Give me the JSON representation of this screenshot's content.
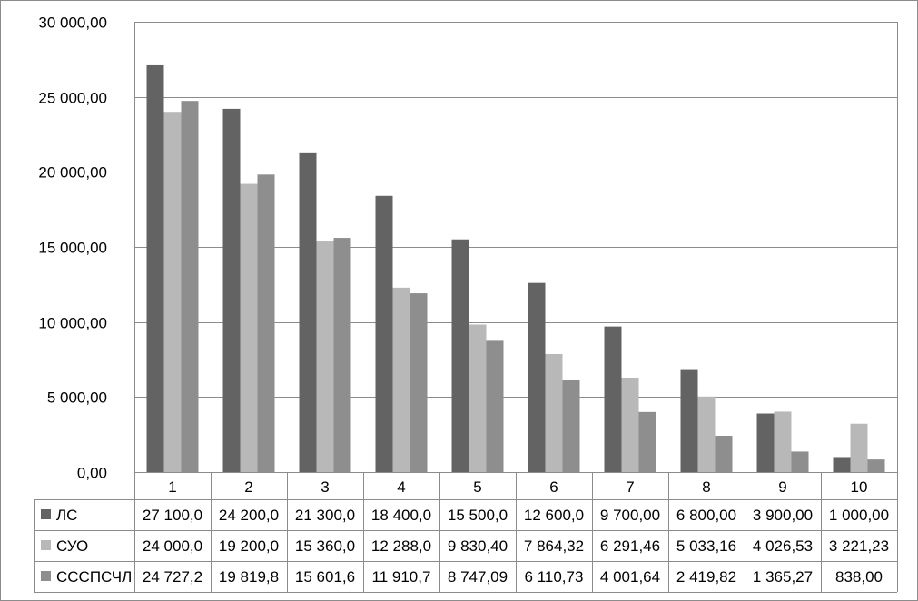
{
  "chart_data": {
    "type": "bar",
    "categories": [
      "1",
      "2",
      "3",
      "4",
      "5",
      "6",
      "7",
      "8",
      "9",
      "10"
    ],
    "ylim": [
      0,
      30000
    ],
    "yticks": [
      0,
      5000,
      10000,
      15000,
      20000,
      25000,
      30000
    ],
    "ytick_labels": [
      "0,00",
      "5 000,00",
      "10 000,00",
      "15 000,00",
      "20 000,00",
      "25 000,00",
      "30 000,00"
    ],
    "grid": true,
    "legend_placement": "data-table",
    "series": [
      {
        "name": "ЛС",
        "color": "#636363",
        "values": [
          27100,
          24200,
          21300,
          18400,
          15500,
          12600,
          9700,
          6800,
          3900,
          1000
        ],
        "labels": [
          "27 100,0",
          "24 200,0",
          "21 300,0",
          "18 400,0",
          "15 500,0",
          "12 600,0",
          "9 700,00",
          "6 800,00",
          "3 900,00",
          "1 000,00"
        ]
      },
      {
        "name": "СУО",
        "color": "#b8b8b8",
        "values": [
          24000,
          19200,
          15360,
          12288,
          9830.4,
          7864.32,
          6291.46,
          5033.16,
          4026.53,
          3221.23
        ],
        "labels": [
          "24 000,0",
          "19 200,0",
          "15 360,0",
          "12 288,0",
          "9 830,40",
          "7 864,32",
          "6 291,46",
          "5 033,16",
          "4 026,53",
          "3 221,23"
        ]
      },
      {
        "name": "СССПСЧЛ",
        "color": "#8e8e8e",
        "values": [
          24727.2,
          19819.8,
          15601.6,
          11910.7,
          8747.09,
          6110.73,
          4001.64,
          2419.82,
          1365.27,
          838.0
        ],
        "labels": [
          "24 727,2",
          "19 819,8",
          "15 601,6",
          "11 910,7",
          "8 747,09",
          "6 110,73",
          "4 001,64",
          "2 419,82",
          "1 365,27",
          "838,00"
        ]
      }
    ]
  }
}
